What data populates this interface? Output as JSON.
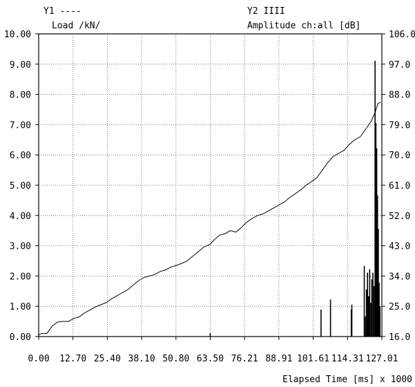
{
  "chart_data": {
    "type": "line",
    "x_axis": {
      "label": "Elapsed Time [ms] x 1000",
      "ticks": [
        "0.00",
        "12.70",
        "25.40",
        "38.10",
        "50.80",
        "63.50",
        "76.21",
        "88.91",
        "101.61",
        "114.31",
        "127.01"
      ],
      "range": [
        0,
        127.01
      ]
    },
    "y1_axis": {
      "legend": "Y1 ----",
      "label": "Load /kN/",
      "ticks": [
        "0.00",
        "1.00",
        "2.00",
        "3.00",
        "4.00",
        "5.00",
        "6.00",
        "7.00",
        "8.00",
        "9.00",
        "10.00"
      ],
      "range": [
        0,
        10
      ]
    },
    "y2_axis": {
      "legend": "Y2 IIII",
      "label": "Amplitude ch:all [dB]",
      "ticks": [
        "16.0",
        "25.0",
        "34.0",
        "43.0",
        "52.0",
        "61.0",
        "70.0",
        "79.0",
        "88.0",
        "97.0",
        "106.0"
      ],
      "range": [
        16,
        106
      ]
    },
    "grid": "dotted",
    "series": [
      {
        "axis": "y1",
        "style": "line",
        "points": [
          [
            0,
            0.05
          ],
          [
            1,
            0.1
          ],
          [
            3,
            0.1
          ],
          [
            4,
            0.22
          ],
          [
            5,
            0.35
          ],
          [
            7,
            0.48
          ],
          [
            9,
            0.5
          ],
          [
            11,
            0.5
          ],
          [
            13,
            0.6
          ],
          [
            15,
            0.65
          ],
          [
            17,
            0.78
          ],
          [
            19,
            0.88
          ],
          [
            21,
            0.98
          ],
          [
            23,
            1.05
          ],
          [
            25,
            1.12
          ],
          [
            27,
            1.25
          ],
          [
            29,
            1.35
          ],
          [
            31,
            1.45
          ],
          [
            33,
            1.55
          ],
          [
            35,
            1.7
          ],
          [
            37,
            1.85
          ],
          [
            39,
            1.95
          ],
          [
            41,
            2.0
          ],
          [
            43,
            2.05
          ],
          [
            45,
            2.15
          ],
          [
            47,
            2.2
          ],
          [
            49,
            2.3
          ],
          [
            51,
            2.35
          ],
          [
            53,
            2.42
          ],
          [
            55,
            2.5
          ],
          [
            57,
            2.65
          ],
          [
            59,
            2.8
          ],
          [
            61,
            2.95
          ],
          [
            63.5,
            3.05
          ],
          [
            65,
            3.2
          ],
          [
            67,
            3.35
          ],
          [
            69,
            3.4
          ],
          [
            71,
            3.5
          ],
          [
            73,
            3.45
          ],
          [
            75,
            3.6
          ],
          [
            77,
            3.78
          ],
          [
            79,
            3.9
          ],
          [
            81,
            4.0
          ],
          [
            83,
            4.05
          ],
          [
            85,
            4.15
          ],
          [
            87,
            4.25
          ],
          [
            89,
            4.35
          ],
          [
            91,
            4.45
          ],
          [
            93,
            4.6
          ],
          [
            95,
            4.72
          ],
          [
            97,
            4.85
          ],
          [
            99,
            5.0
          ],
          [
            101,
            5.12
          ],
          [
            103,
            5.25
          ],
          [
            105,
            5.5
          ],
          [
            107,
            5.75
          ],
          [
            109,
            5.95
          ],
          [
            111,
            6.05
          ],
          [
            113,
            6.15
          ],
          [
            115,
            6.35
          ],
          [
            117,
            6.5
          ],
          [
            119,
            6.6
          ],
          [
            121,
            6.85
          ],
          [
            123,
            7.1
          ],
          [
            124.5,
            7.4
          ],
          [
            125.5,
            7.68
          ],
          [
            126.5,
            7.75
          ]
        ]
      },
      {
        "axis": "y2",
        "style": "bars",
        "hits": [
          [
            63.5,
            17.0
          ],
          [
            104.5,
            24.0
          ],
          [
            108.0,
            27.0
          ],
          [
            115.7,
            24.0
          ],
          [
            115.9,
            25.5
          ],
          [
            120.5,
            37.0
          ],
          [
            120.9,
            22.0
          ],
          [
            121.3,
            30.0
          ],
          [
            121.7,
            35.0
          ],
          [
            122.1,
            28.0
          ],
          [
            122.5,
            36.0
          ],
          [
            122.9,
            26.0
          ],
          [
            123.3,
            33.0
          ],
          [
            123.7,
            35.0
          ],
          [
            124.1,
            31.0
          ],
          [
            124.5,
            98.0
          ],
          [
            124.8,
            79.5
          ],
          [
            125.1,
            72.0
          ],
          [
            125.4,
            58.0
          ],
          [
            125.7,
            48.0
          ],
          [
            126.0,
            32.0
          ],
          [
            126.3,
            25.0
          ]
        ]
      }
    ]
  }
}
